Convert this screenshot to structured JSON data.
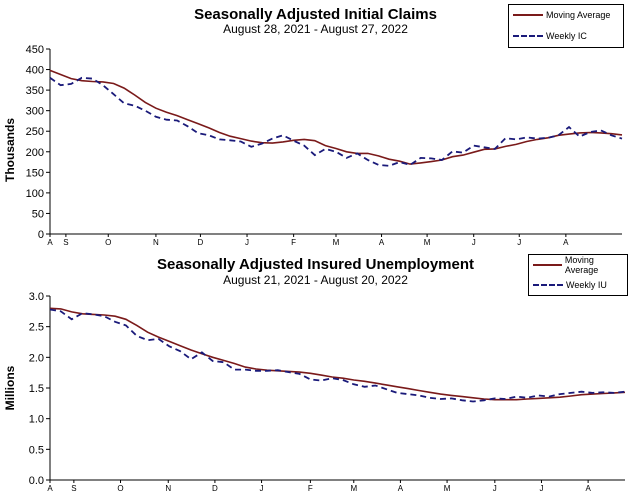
{
  "chart_data": [
    {
      "type": "line",
      "title": "Seasonally Adjusted Initial Claims",
      "subtitle": "August 28, 2021 - August 27, 2022",
      "ylabel": "Thousands",
      "xlabel": "",
      "ylim": [
        0,
        450
      ],
      "yticks": [
        0,
        50,
        100,
        150,
        200,
        250,
        300,
        350,
        400,
        450
      ],
      "month_labels": [
        {
          "label": "A",
          "week": 0
        },
        {
          "label": "S",
          "week": 1.5
        },
        {
          "label": "O",
          "week": 5.5
        },
        {
          "label": "N",
          "week": 10
        },
        {
          "label": "D",
          "week": 14.2
        },
        {
          "label": "J",
          "week": 18.6
        },
        {
          "label": "F",
          "week": 23
        },
        {
          "label": "M",
          "week": 27
        },
        {
          "label": "A",
          "week": 31.3
        },
        {
          "label": "M",
          "week": 35.6
        },
        {
          "label": "J",
          "week": 40
        },
        {
          "label": "J",
          "week": 44.3
        },
        {
          "label": "A",
          "week": 48.7
        }
      ],
      "legend_position": "top-right",
      "series": [
        {
          "name": "Moving Average",
          "color": "#7a1a1a",
          "style": "solid",
          "values": [
            398,
            388,
            378,
            373,
            371,
            370,
            366,
            355,
            338,
            320,
            306,
            296,
            288,
            278,
            268,
            258,
            247,
            238,
            232,
            226,
            222,
            221,
            224,
            228,
            230,
            227,
            215,
            208,
            200,
            196,
            196,
            190,
            182,
            177,
            170,
            173,
            176,
            180,
            188,
            192,
            199,
            206,
            207,
            213,
            218,
            225,
            230,
            234,
            240,
            243,
            246,
            247,
            246,
            244,
            241
          ]
        },
        {
          "name": "Weekly IC",
          "color": "#1a1a7a",
          "style": "dashed",
          "values": [
            380,
            362,
            365,
            380,
            378,
            362,
            340,
            318,
            312,
            300,
            285,
            278,
            276,
            262,
            245,
            240,
            230,
            228,
            225,
            212,
            220,
            232,
            240,
            227,
            215,
            192,
            207,
            200,
            185,
            196,
            180,
            168,
            166,
            175,
            168,
            185,
            184,
            180,
            201,
            198,
            215,
            211,
            207,
            233,
            230,
            235,
            232,
            234,
            240,
            260,
            237,
            248,
            252,
            240,
            232
          ]
        }
      ]
    },
    {
      "type": "line",
      "title": "Seasonally Adjusted Insured Unemployment",
      "subtitle": "August 21, 2021 - August 20, 2022",
      "ylabel": "Millions",
      "xlabel": "",
      "ylim": [
        0,
        3.0
      ],
      "yticks": [
        0.0,
        0.5,
        1.0,
        1.5,
        2.0,
        2.5,
        3.0
      ],
      "month_labels": [
        {
          "label": "A",
          "week": 0
        },
        {
          "label": "S",
          "week": 2.2
        },
        {
          "label": "O",
          "week": 6.5
        },
        {
          "label": "N",
          "week": 10.9
        },
        {
          "label": "D",
          "week": 15.2
        },
        {
          "label": "J",
          "week": 19.5
        },
        {
          "label": "F",
          "week": 24
        },
        {
          "label": "M",
          "week": 28
        },
        {
          "label": "A",
          "week": 32.3
        },
        {
          "label": "M",
          "week": 36.6
        },
        {
          "label": "J",
          "week": 41
        },
        {
          "label": "J",
          "week": 45.3
        },
        {
          "label": "A",
          "week": 49.6
        }
      ],
      "legend_position": "top-right",
      "series": [
        {
          "name": "Moving Average",
          "color": "#7a1a1a",
          "style": "solid",
          "values": [
            2.8,
            2.79,
            2.74,
            2.71,
            2.7,
            2.69,
            2.67,
            2.62,
            2.52,
            2.41,
            2.33,
            2.26,
            2.19,
            2.12,
            2.06,
            2.0,
            1.95,
            1.9,
            1.84,
            1.81,
            1.79,
            1.78,
            1.77,
            1.76,
            1.74,
            1.71,
            1.68,
            1.66,
            1.63,
            1.61,
            1.58,
            1.55,
            1.52,
            1.49,
            1.46,
            1.43,
            1.4,
            1.38,
            1.36,
            1.34,
            1.32,
            1.31,
            1.31,
            1.31,
            1.32,
            1.33,
            1.34,
            1.35,
            1.37,
            1.39,
            1.4,
            1.41,
            1.42,
            1.43
          ]
        },
        {
          "name": "Weekly IU",
          "color": "#1a1a7a",
          "style": "dashed",
          "values": [
            2.78,
            2.75,
            2.62,
            2.72,
            2.7,
            2.67,
            2.58,
            2.52,
            2.35,
            2.28,
            2.3,
            2.18,
            2.1,
            1.97,
            2.08,
            1.94,
            1.92,
            1.8,
            1.8,
            1.78,
            1.78,
            1.79,
            1.76,
            1.73,
            1.64,
            1.62,
            1.66,
            1.63,
            1.56,
            1.52,
            1.54,
            1.48,
            1.42,
            1.4,
            1.38,
            1.34,
            1.32,
            1.33,
            1.3,
            1.28,
            1.3,
            1.33,
            1.32,
            1.36,
            1.34,
            1.38,
            1.36,
            1.4,
            1.42,
            1.44,
            1.42,
            1.43,
            1.42,
            1.44
          ]
        }
      ]
    }
  ]
}
